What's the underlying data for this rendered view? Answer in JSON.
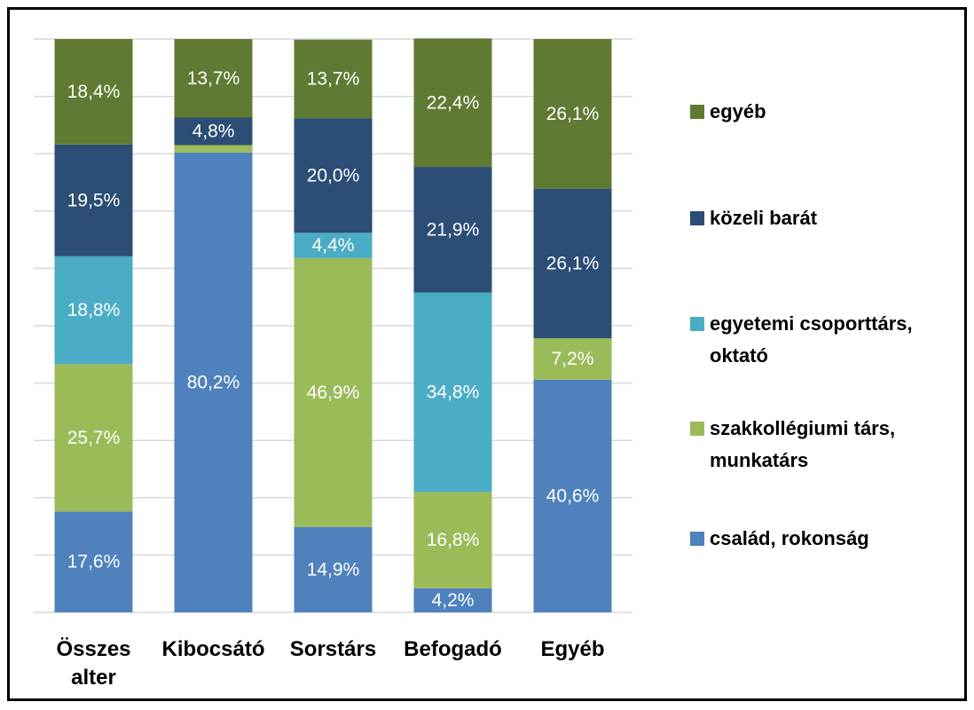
{
  "chart_data": {
    "type": "stacked_bar",
    "categories": [
      "Összes alter",
      "Kibocsátó",
      "Sorstárs",
      "Befogadó",
      "Egyéb"
    ],
    "ylim": [
      0,
      100
    ],
    "yticks": [
      0,
      10,
      20,
      30,
      40,
      50,
      60,
      70,
      80,
      90,
      100
    ],
    "grid": true,
    "series": [
      {
        "name": "család, rokonság",
        "color": "#4f81bd",
        "values": [
          17.6,
          80.2,
          14.9,
          4.2,
          40.6
        ],
        "value_labels": [
          "17,6%",
          "80,2%",
          "14,9%",
          "4,2%",
          "40,6%"
        ]
      },
      {
        "name": "szakkollégiumi társ, munkatárs",
        "color": "#9bbb59",
        "values": [
          25.7,
          1.3,
          46.9,
          16.8,
          7.2
        ],
        "value_labels": [
          "25,7%",
          null,
          "46,9%",
          "16,8%",
          "7,2%"
        ]
      },
      {
        "name": "egyetemi csoporttárs, oktató",
        "color": "#4bacc6",
        "values": [
          18.8,
          0,
          4.4,
          34.8,
          0
        ],
        "value_labels": [
          "18,8%",
          null,
          "4,4%",
          "34,8%",
          null
        ]
      },
      {
        "name": "közeli barát",
        "color": "#2c4d75",
        "values": [
          19.5,
          4.8,
          20.0,
          21.9,
          26.1
        ],
        "value_labels": [
          "19,5%",
          "4,8%",
          "20,0%",
          "21,9%",
          "26,1%"
        ]
      },
      {
        "name": "egyéb",
        "color": "#617a33",
        "values": [
          18.4,
          13.7,
          13.7,
          22.4,
          26.1
        ],
        "value_labels": [
          "18,4%",
          "13,7%",
          "13,7%",
          "22,4%",
          "26,1%"
        ]
      }
    ],
    "legend": "right"
  }
}
